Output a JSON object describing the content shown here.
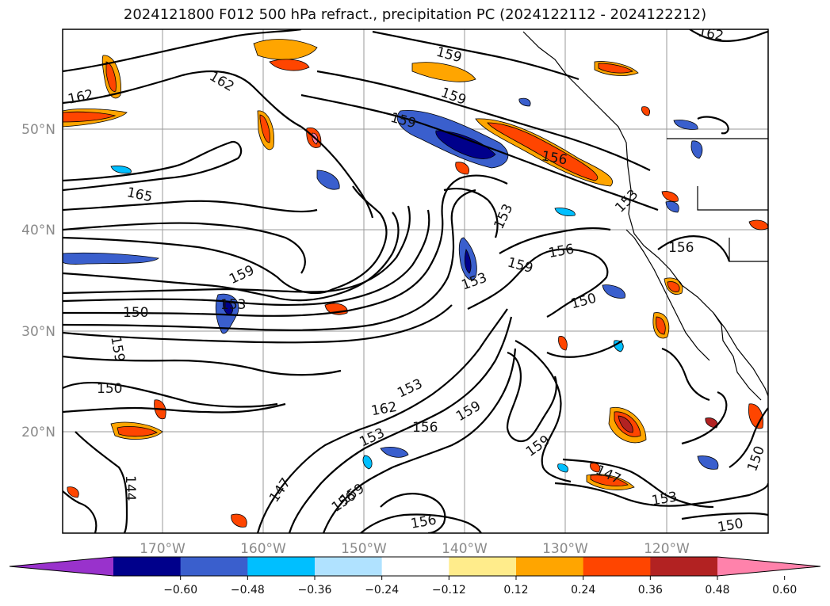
{
  "title": "2024121800 F012 500 hPa refract., precipitation PC (2024122112 - 2024122212)",
  "map": {
    "lat_ticks": [
      "50°N",
      "40°N",
      "30°N",
      "20°N"
    ],
    "lon_ticks": [
      "170°W",
      "160°W",
      "150°W",
      "140°W",
      "130°W",
      "120°W"
    ],
    "contour_levels": [
      "144",
      "147",
      "150",
      "153",
      "156",
      "159",
      "162",
      "165"
    ]
  },
  "colorbar": {
    "labels": [
      "−0.60",
      "−0.48",
      "−0.36",
      "−0.24",
      "−0.12",
      "0.12",
      "0.24",
      "0.36",
      "0.48",
      "0.60"
    ],
    "colors": [
      "#9932cc",
      "#00008b",
      "#3a5fcd",
      "#00bfff",
      "#b0e2ff",
      "#ffffff",
      "#ffec8b",
      "#ffa500",
      "#ff4500",
      "#b22222",
      "#ff82ab"
    ]
  }
}
